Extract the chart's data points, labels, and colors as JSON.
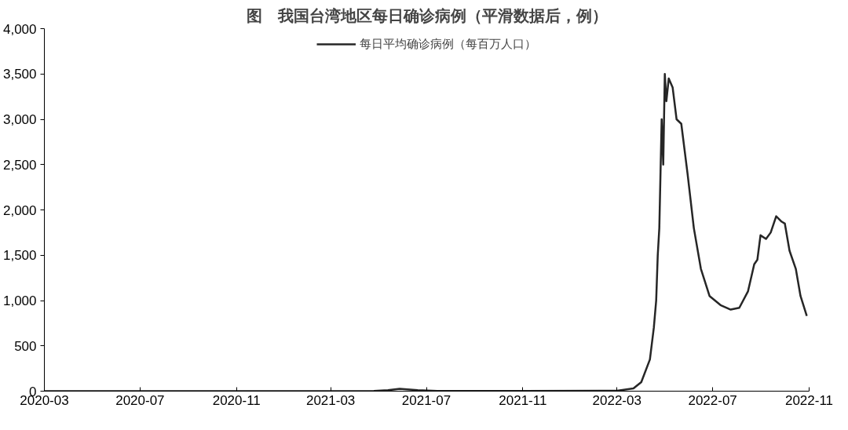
{
  "chart_data": {
    "type": "line",
    "title": "图　我国台湾地区每日确诊病例（平滑数据后，例）",
    "x": [
      "2020-03-01",
      "2020-07-01",
      "2020-11-01",
      "2021-03-01",
      "2021-04-25",
      "2021-05-13",
      "2021-05-28",
      "2021-06-20",
      "2021-07-15",
      "2021-11-01",
      "2022-03-01",
      "2022-03-22",
      "2022-04-01",
      "2022-04-12",
      "2022-04-17",
      "2022-04-20",
      "2022-04-22",
      "2022-04-24",
      "2022-04-27",
      "2022-04-29",
      "2022-05-01",
      "2022-05-03",
      "2022-05-06",
      "2022-05-11",
      "2022-05-16",
      "2022-05-22",
      "2022-05-30",
      "2022-06-07",
      "2022-06-16",
      "2022-06-27",
      "2022-07-11",
      "2022-07-24",
      "2022-08-04",
      "2022-08-15",
      "2022-08-23",
      "2022-08-27",
      "2022-08-31",
      "2022-09-07",
      "2022-09-13",
      "2022-09-20",
      "2022-09-27",
      "2022-10-01",
      "2022-10-07",
      "2022-10-15",
      "2022-10-21",
      "2022-10-29"
    ],
    "series": [
      {
        "name": "每日平均确诊病例（每百万人口）",
        "color": "#262626",
        "values": [
          0,
          0,
          0,
          0,
          2,
          10,
          25,
          10,
          3,
          2,
          5,
          30,
          100,
          350,
          700,
          1000,
          1500,
          1800,
          3000,
          2500,
          3500,
          3200,
          3450,
          3350,
          3000,
          2950,
          2400,
          1800,
          1350,
          1050,
          950,
          900,
          920,
          1100,
          1400,
          1450,
          1720,
          1680,
          1750,
          1930,
          1870,
          1850,
          1550,
          1350,
          1050,
          830
        ]
      }
    ],
    "xlim": [
      "2020-03-01",
      "2022-11-01"
    ],
    "xticks": [
      {
        "value": "2020-03-01",
        "label": "2020-03"
      },
      {
        "value": "2020-07-01",
        "label": "2020-07"
      },
      {
        "value": "2020-11-01",
        "label": "2020-11"
      },
      {
        "value": "2021-03-01",
        "label": "2021-03"
      },
      {
        "value": "2021-07-01",
        "label": "2021-07"
      },
      {
        "value": "2021-11-01",
        "label": "2021-11"
      },
      {
        "value": "2022-03-01",
        "label": "2022-03"
      },
      {
        "value": "2022-07-01",
        "label": "2022-07"
      },
      {
        "value": "2022-11-01",
        "label": "2022-11"
      }
    ],
    "ylim": [
      0,
      4000
    ],
    "yticks": [
      0,
      500,
      {
        "value": 1000,
        "label": "1,000"
      },
      {
        "value": 1500,
        "label": "1,500"
      },
      {
        "value": 2000,
        "label": "2,000"
      },
      {
        "value": 2500,
        "label": "2,500"
      },
      {
        "value": 3000,
        "label": "3,000"
      },
      {
        "value": 3500,
        "label": "3,500"
      },
      {
        "value": 4000,
        "label": "4,000"
      }
    ],
    "grid": false,
    "legend": "top",
    "line_style": "solid"
  }
}
